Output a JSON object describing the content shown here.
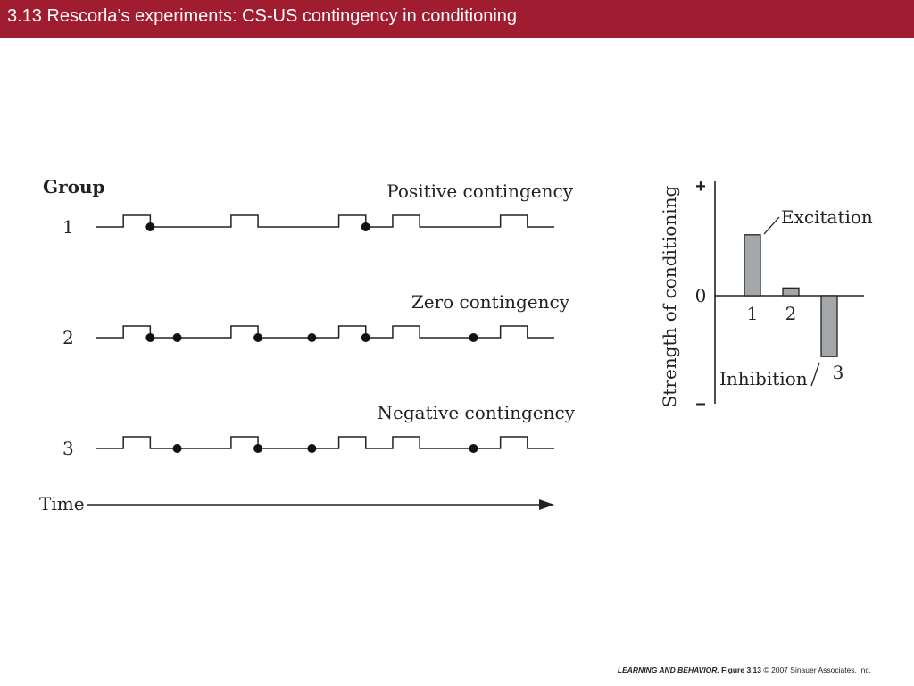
{
  "slide": {
    "title": "3.13  Rescorla’s experiments:  CS-US contingency in conditioning"
  },
  "timeline": {
    "group_heading": "Group",
    "time_label": "Time",
    "groups": [
      {
        "id": "1",
        "label": "Positive contingency",
        "cs_on": [
          1,
          5,
          9,
          11,
          15
        ],
        "us_times": [
          2,
          10
        ]
      },
      {
        "id": "2",
        "label": "Zero contingency",
        "cs_on": [
          1,
          5,
          9,
          11,
          15
        ],
        "us_times": [
          2,
          3,
          6,
          8,
          10,
          14
        ]
      },
      {
        "id": "3",
        "label": "Negative contingency",
        "cs_on": [
          1,
          5,
          9,
          11,
          15
        ],
        "us_times": [
          3,
          6,
          8,
          14
        ]
      }
    ]
  },
  "chart_data": {
    "type": "bar",
    "ylabel": "Strength of conditioning",
    "y_ticks": [
      "+",
      "0",
      "–"
    ],
    "ylim": [
      -1,
      1
    ],
    "categories": [
      "1",
      "2",
      "3"
    ],
    "values": [
      0.55,
      0.07,
      -0.55
    ],
    "annotations": {
      "excitation": "Excitation",
      "inhibition": "Inhibition"
    },
    "bar_color": "#a3a7aa"
  },
  "footer": {
    "book": "LEARNING AND BEHAVIOR,",
    "figure": "Figure 3.13",
    "copyright": "© 2007 Sinauer Associates, Inc."
  }
}
